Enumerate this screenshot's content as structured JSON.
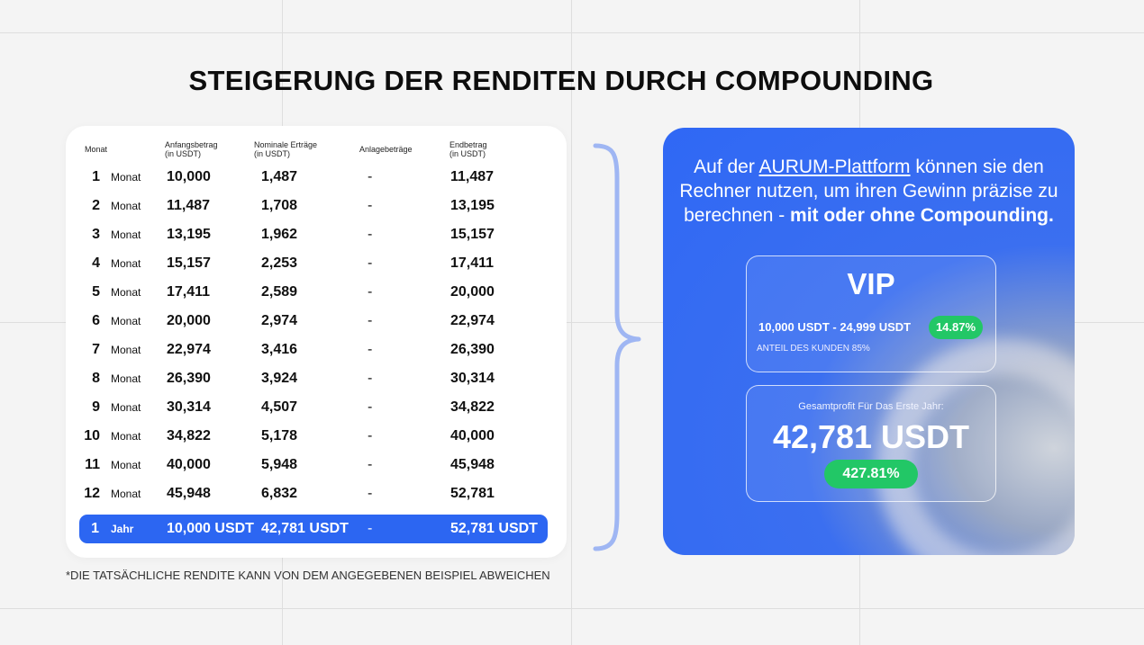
{
  "title": "STEIGERUNG DER RENDITEN DURCH COMPOUNDING",
  "table": {
    "headers": {
      "month": "Monat",
      "start": "Anfangsbetrag",
      "start_unit": "(in USDT)",
      "earnings": "Nominale Erträge",
      "earnings_unit": "(in USDT)",
      "deposits": "Anlagebeträge",
      "end": "Endbetrag",
      "end_unit": "(in USDT)"
    },
    "rows": [
      {
        "n": "1",
        "unit": "Monat",
        "start": "10,000",
        "earnings": "1,487",
        "deposit": "-",
        "end": "11,487"
      },
      {
        "n": "2",
        "unit": "Monat",
        "start": "11,487",
        "earnings": "1,708",
        "deposit": "-",
        "end": "13,195"
      },
      {
        "n": "3",
        "unit": "Monat",
        "start": "13,195",
        "earnings": "1,962",
        "deposit": "-",
        "end": "15,157"
      },
      {
        "n": "4",
        "unit": "Monat",
        "start": "15,157",
        "earnings": "2,253",
        "deposit": "-",
        "end": "17,411"
      },
      {
        "n": "5",
        "unit": "Monat",
        "start": "17,411",
        "earnings": "2,589",
        "deposit": "-",
        "end": "20,000"
      },
      {
        "n": "6",
        "unit": "Monat",
        "start": "20,000",
        "earnings": "2,974",
        "deposit": "-",
        "end": "22,974"
      },
      {
        "n": "7",
        "unit": "Monat",
        "start": "22,974",
        "earnings": "3,416",
        "deposit": "-",
        "end": "26,390"
      },
      {
        "n": "8",
        "unit": "Monat",
        "start": "26,390",
        "earnings": "3,924",
        "deposit": "-",
        "end": "30,314"
      },
      {
        "n": "9",
        "unit": "Monat",
        "start": "30,314",
        "earnings": "4,507",
        "deposit": "-",
        "end": "34,822"
      },
      {
        "n": "10",
        "unit": "Monat",
        "start": "34,822",
        "earnings": "5,178",
        "deposit": "-",
        "end": "40,000"
      },
      {
        "n": "11",
        "unit": "Monat",
        "start": "40,000",
        "earnings": "5,948",
        "deposit": "-",
        "end": "45,948"
      },
      {
        "n": "12",
        "unit": "Monat",
        "start": "45,948",
        "earnings": "6,832",
        "deposit": "-",
        "end": "52,781"
      }
    ],
    "total": {
      "n": "1",
      "unit": "Jahr",
      "start": "10,000 USDT",
      "earnings": "42,781 USDT",
      "deposit": "-",
      "end": "52,781 USDT"
    }
  },
  "footnote": "*DIE TATSÄCHLICHE RENDITE KANN VON DEM ANGEGEBENEN BEISPIEL ABWEICHEN",
  "info": {
    "text_before": "Auf der ",
    "link": "AURUM-Plattform",
    "text_middle": " können sie den Rechner nutzen, um ihren Gewinn präzise zu berechnen - ",
    "text_bold": "mit oder ohne Compounding.",
    "vip": {
      "title": "VIP",
      "range": "10,000 USDT - 24,999 USDT",
      "rate": "14.87%",
      "share": "ANTEIL DES KUNDEN 85%"
    },
    "profit": {
      "label": "Gesamtprofit Für Das Erste Jahr:",
      "value": "42,781 USDT",
      "percent": "427.81%"
    }
  },
  "colors": {
    "accent": "#2c66f2",
    "green": "#22c766",
    "brace": "#9fb6f3"
  }
}
